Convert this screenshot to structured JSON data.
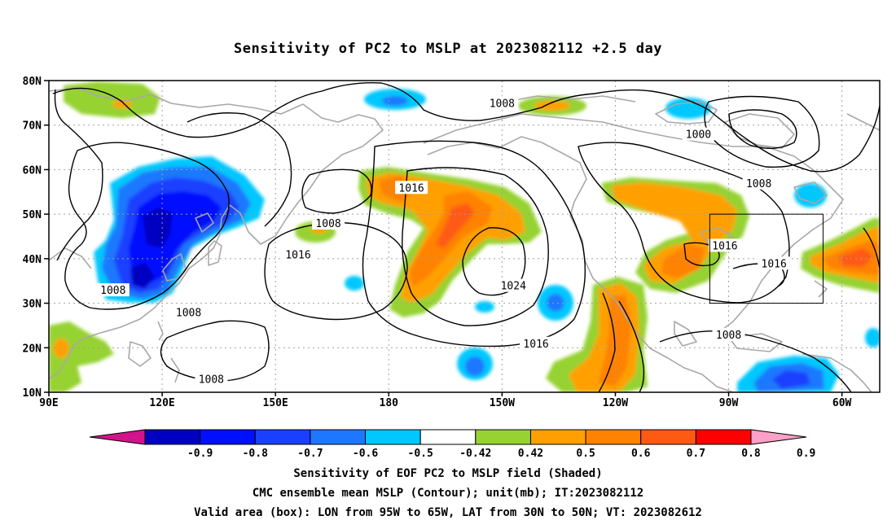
{
  "title": "Sensitivity of PC2 to MSLP at 2023082112 +2.5 day",
  "lat_labels": [
    "80N",
    "70N",
    "60N",
    "50N",
    "40N",
    "30N",
    "20N",
    "10N"
  ],
  "lon_labels": [
    "90E",
    "120E",
    "150E",
    "180",
    "150W",
    "120W",
    "90W",
    "60W"
  ],
  "contour_labels": [
    {
      "text": "1008",
      "lon": 210,
      "lat": 75
    },
    {
      "text": "1000",
      "lon": 262,
      "lat": 68
    },
    {
      "text": "1008",
      "lon": 278,
      "lat": 57
    },
    {
      "text": "1016",
      "lon": 186,
      "lat": 56
    },
    {
      "text": "1008",
      "lon": 164,
      "lat": 48
    },
    {
      "text": "1016",
      "lon": 156,
      "lat": 41
    },
    {
      "text": "1008",
      "lon": 107,
      "lat": 33
    },
    {
      "text": "1008",
      "lon": 127,
      "lat": 28
    },
    {
      "text": "1024",
      "lon": 213,
      "lat": 34
    },
    {
      "text": "1016",
      "lon": 219,
      "lat": 21
    },
    {
      "text": "1008",
      "lon": 133,
      "lat": 13
    },
    {
      "text": "1016",
      "lon": 269,
      "lat": 43
    },
    {
      "text": "1016",
      "lon": 282,
      "lat": 39
    },
    {
      "text": "1008",
      "lon": 270,
      "lat": 23
    }
  ],
  "colorbar": {
    "labels": [
      "-0.9",
      "-0.8",
      "-0.7",
      "-0.6",
      "-0.5",
      "-0.42",
      "0.42",
      "0.5",
      "0.6",
      "0.7",
      "0.8",
      "0.9"
    ],
    "colors": [
      "#0000c0",
      "#0010ff",
      "#1a40ff",
      "#1e78ff",
      "#00c8ff",
      "#ffffff",
      "#96d232",
      "#ffa000",
      "#ff8200",
      "#ff5a14",
      "#ff0000"
    ],
    "low_end_color": "#d2148c",
    "high_end_color": "#ffa0c8"
  },
  "valid_box": {
    "lon_min": 265,
    "lon_max": 295,
    "lat_min": 30,
    "lat_max": 50
  },
  "captions": [
    "Sensitivity of EOF PC2 to MSLP field (Shaded)",
    "CMC ensemble mean MSLP (Contour); unit(mb); IT:2023082112",
    "Valid area (box): LON from 95W to 65W, LAT from 30N to 50N; VT: 2023082612"
  ]
}
